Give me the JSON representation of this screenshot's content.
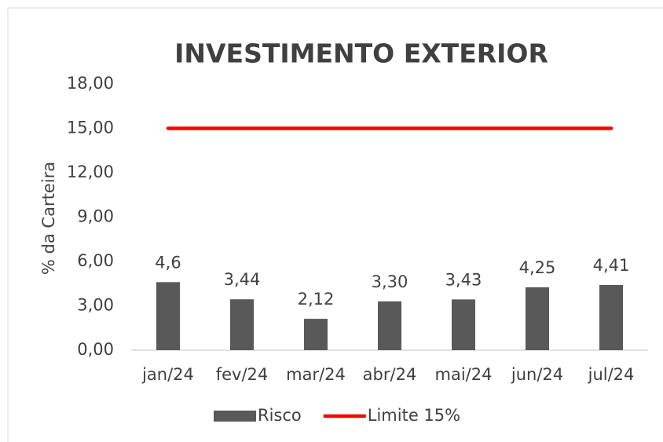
{
  "chart_data": {
    "type": "bar",
    "title": "INVESTIMENTO EXTERIOR",
    "y_axis_label": "% da Carteira",
    "categories": [
      "jan/24",
      "fev/24",
      "mar/24",
      "abr/24",
      "mai/24",
      "jun/24",
      "jul/24"
    ],
    "series": [
      {
        "name": "Risco",
        "type": "bar",
        "color": "#595959",
        "values": [
          4.6,
          3.44,
          2.12,
          3.3,
          3.43,
          4.25,
          4.41
        ],
        "value_labels": [
          "4,6",
          "3,44",
          "2,12",
          "3,30",
          "3,43",
          "4,25",
          "4,41"
        ]
      },
      {
        "name": "Limite 15%",
        "type": "line",
        "color": "#ff0000",
        "values": [
          15,
          15,
          15,
          15,
          15,
          15,
          15
        ]
      }
    ],
    "ylim": [
      0,
      18
    ],
    "yticks": [
      {
        "value": 0,
        "label": "0,00"
      },
      {
        "value": 3,
        "label": "3,00"
      },
      {
        "value": 6,
        "label": "6,00"
      },
      {
        "value": 9,
        "label": "9,00"
      },
      {
        "value": 12,
        "label": "12,00"
      },
      {
        "value": 15,
        "label": "15,00"
      },
      {
        "value": 18,
        "label": "18,00"
      }
    ],
    "grid": false,
    "legend": "bottom"
  }
}
